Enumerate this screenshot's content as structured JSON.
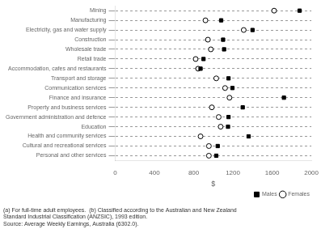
{
  "chart_data": {
    "type": "dot",
    "orientation": "horizontal",
    "categories": [
      "Mining",
      "Manufacturing",
      "Electricity, gas and water supply",
      "Construction",
      "Wholesale trade",
      "Retail trade",
      "Accommodation, cafes and restaurants",
      "Transport and storage",
      "Communication services",
      "Finance and insurance",
      "Property and business services",
      "Government administration and defence",
      "Education",
      "Health and community services",
      "Cultural and recreational services",
      "Personal and other services"
    ],
    "series": [
      {
        "name": "Males",
        "color": "#000000",
        "marker": "square",
        "values": [
          1880,
          1080,
          1400,
          1100,
          1110,
          900,
          870,
          1155,
          1195,
          1720,
          1300,
          1155,
          1150,
          1360,
          1045,
          1030
        ]
      },
      {
        "name": "Females",
        "color": "#000000",
        "marker": "open circle",
        "values": [
          1620,
          920,
          1310,
          945,
          975,
          820,
          845,
          1030,
          1120,
          1165,
          985,
          1055,
          1075,
          870,
          955,
          955
        ]
      }
    ],
    "xlim": [
      0,
      2000
    ],
    "xticks": [
      0,
      400,
      800,
      1200,
      1600,
      2000
    ],
    "xlabel": "$",
    "grid": "y",
    "legend": "lower right",
    "annotations": [
      "(a) For full-time adult employees.  (b) Classified according to the Australian and New Zealand",
      "Standard Industrial Classification (ANZSIC), 1993 edition.",
      "Source: Average Weekly Earnings, Australia (6302.0)."
    ]
  }
}
